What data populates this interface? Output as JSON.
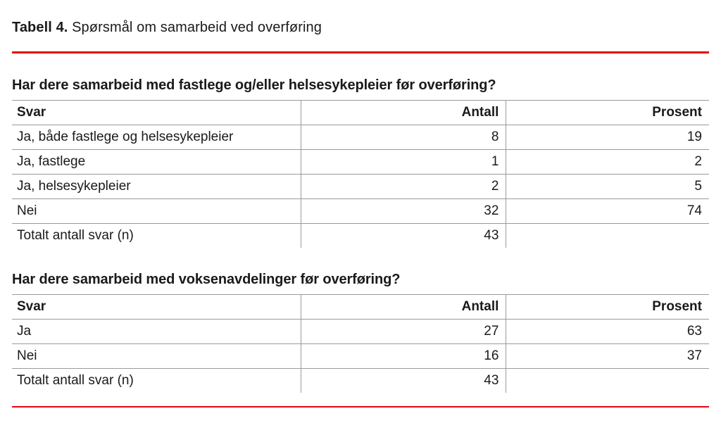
{
  "page": {
    "title_prefix": "Tabell 4.",
    "title_rest": " Spørsmål om samarbeid ved overføring"
  },
  "colors": {
    "accent_red": "#e30613",
    "border_gray": "#9a9a9a",
    "text": "#1a1a1a"
  },
  "chart_data": [
    {
      "type": "table",
      "title": "Har dere samarbeid med fastlege og/eller helsesykepleier før overføring?",
      "headers": [
        "Svar",
        "Antall",
        "Prosent"
      ],
      "rows": [
        [
          "Ja, både fastlege og helsesykepleier",
          "8",
          "19"
        ],
        [
          "Ja, fastlege",
          "1",
          "2"
        ],
        [
          "Ja, helsesykepleier",
          "2",
          "5"
        ],
        [
          "Nei",
          "32",
          "74"
        ],
        [
          "Totalt antall svar (n)",
          "43",
          ""
        ]
      ]
    },
    {
      "type": "table",
      "title": "Har dere samarbeid med voksenavdelinger før overføring?",
      "headers": [
        "Svar",
        "Antall",
        "Prosent"
      ],
      "rows": [
        [
          "Ja",
          "27",
          "63"
        ],
        [
          "Nei",
          "16",
          "37"
        ],
        [
          "Totalt antall svar (n)",
          "43",
          ""
        ]
      ]
    }
  ]
}
